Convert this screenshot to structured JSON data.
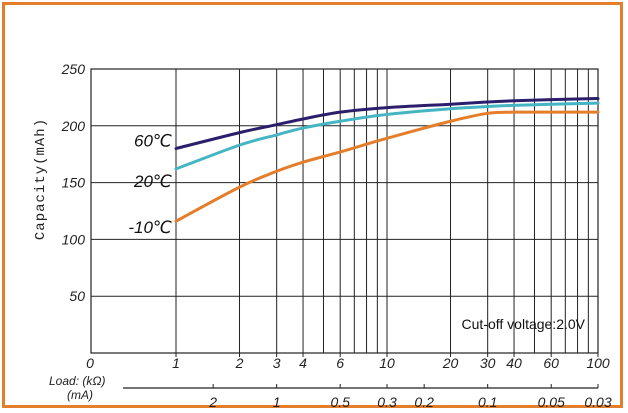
{
  "chart_data": {
    "type": "line",
    "ylabel": "Capacity(mAh)",
    "xlabel": "Load: (kΩ)",
    "x2label": "(mA)",
    "annotation": "Cut-off voltage:2.0V",
    "ylim": [
      0,
      250
    ],
    "xscale": "log",
    "xlim": [
      1,
      100
    ],
    "yticks": [
      {
        "value": 50,
        "label": "50"
      },
      {
        "value": 100,
        "label": "100"
      },
      {
        "value": 150,
        "label": "150"
      },
      {
        "value": 200,
        "label": "200"
      },
      {
        "value": 250,
        "label": "250"
      }
    ],
    "xticks": [
      {
        "value": 1,
        "label": "1"
      },
      {
        "value": 2,
        "label": "2"
      },
      {
        "value": 3,
        "label": "3"
      },
      {
        "value": 4,
        "label": "4"
      },
      {
        "value": 6,
        "label": "6"
      },
      {
        "value": 10,
        "label": "10"
      },
      {
        "value": 20,
        "label": "20"
      },
      {
        "value": 30,
        "label": "30"
      },
      {
        "value": 40,
        "label": "40"
      },
      {
        "value": 60,
        "label": "60"
      },
      {
        "value": 100,
        "label": "100"
      }
    ],
    "x_zero_label": "0",
    "x2ticks": [
      {
        "value": 2,
        "label": "2"
      },
      {
        "value": 1,
        "label": "1"
      },
      {
        "value": 0.5,
        "label": "0.5"
      },
      {
        "value": 0.3,
        "label": "0.3"
      },
      {
        "value": 0.2,
        "label": "0.2"
      },
      {
        "value": 0.1,
        "label": "0.1"
      },
      {
        "value": 0.05,
        "label": "0.05"
      },
      {
        "value": 0.03,
        "label": "0.03"
      }
    ],
    "series": [
      {
        "name": "60℃",
        "color": "#2b1f6b",
        "x": [
          1,
          2,
          3,
          4,
          6,
          10,
          20,
          30,
          40,
          60,
          100
        ],
        "y": [
          180,
          194,
          201,
          206,
          212,
          216,
          219,
          221,
          222,
          223,
          224
        ]
      },
      {
        "name": "20℃",
        "color": "#46b5c3",
        "x": [
          1,
          2,
          3,
          4,
          6,
          10,
          20,
          30,
          40,
          60,
          100
        ],
        "y": [
          162,
          183,
          192,
          198,
          204,
          210,
          215,
          217,
          218,
          219,
          220
        ]
      },
      {
        "name": "-10℃",
        "color": "#e57e2a",
        "x": [
          1,
          2,
          3,
          4,
          6,
          10,
          20,
          30,
          40,
          60,
          100
        ],
        "y": [
          116,
          146,
          160,
          168,
          177,
          189,
          204,
          211,
          212,
          212,
          212
        ]
      }
    ]
  }
}
